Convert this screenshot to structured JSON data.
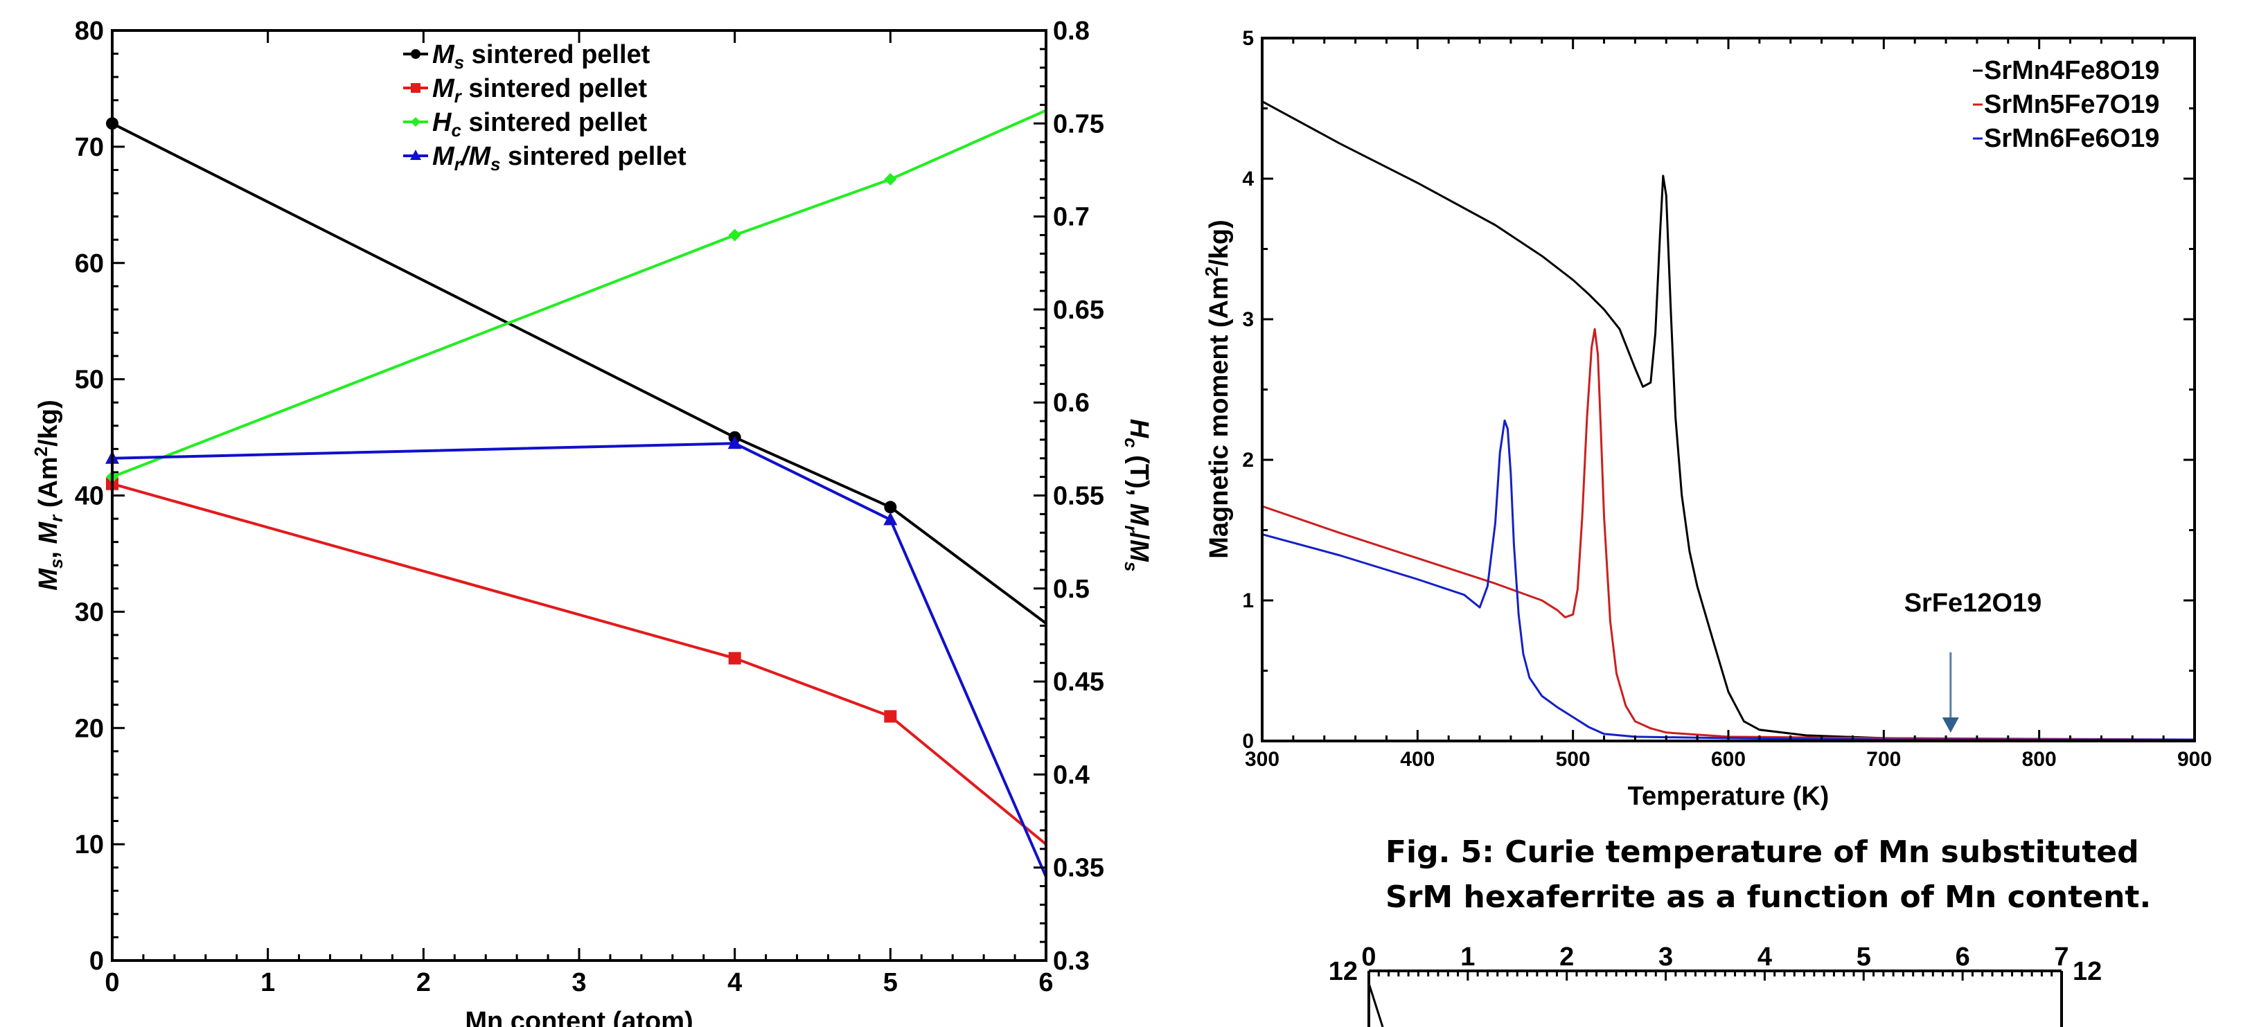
{
  "chart_data": [
    {
      "type": "line",
      "xlabel": "Mn content (atom)",
      "ylabel": "Ms, Mr (Am2/kg)",
      "y2label": "Hc (T), Mr/Ms",
      "xlim": [
        0,
        6
      ],
      "ylim": [
        0,
        80
      ],
      "y2lim": [
        0.3,
        0.8
      ],
      "x_ticks": [
        "0",
        "1",
        "2",
        "3",
        "4",
        "5",
        "6"
      ],
      "y_ticks": [
        "0",
        "10",
        "20",
        "30",
        "40",
        "50",
        "60",
        "70",
        "80"
      ],
      "y2_ticks": [
        "0.3",
        "0.35",
        "0.4",
        "0.45",
        "0.5",
        "0.55",
        "0.6",
        "0.65",
        "0.7",
        "0.75",
        "0.8"
      ],
      "legend_position": "top",
      "series": [
        {
          "name": "Ms sintered pellet",
          "sym": "M",
          "sub": "s",
          "axis": "left",
          "color": "#000000",
          "marker": "circle",
          "x": [
            0,
            4,
            5,
            6
          ],
          "y": [
            72,
            45,
            39,
            29
          ]
        },
        {
          "name": "Mr sintered pellet",
          "sym": "M",
          "sub": "r",
          "axis": "left",
          "color": "#e31a1c",
          "marker": "square",
          "x": [
            0,
            4,
            5,
            6
          ],
          "y": [
            41,
            26,
            21,
            10
          ]
        },
        {
          "name": "Hc sintered pellet",
          "sym": "H",
          "sub": "c",
          "axis": "right",
          "color": "#22ee22",
          "marker": "diamond",
          "x": [
            0,
            4,
            5,
            6
          ],
          "y": [
            0.56,
            0.69,
            0.72,
            0.757
          ]
        },
        {
          "name": "Mr/Ms sintered pellet",
          "sym": "M",
          "sub": "r",
          "sym2": "/M",
          "sub2": "s",
          "axis": "right",
          "color": "#1010cc",
          "marker": "triangle",
          "x": [
            0,
            4,
            5,
            6
          ],
          "y": [
            0.57,
            0.578,
            0.537,
            0.345
          ]
        }
      ]
    },
    {
      "type": "line",
      "xlabel": "Temperature (K)",
      "ylabel": "Magnetic moment (Am2/kg)",
      "xlim": [
        300,
        900
      ],
      "ylim": [
        0,
        5
      ],
      "x_ticks": [
        "300",
        "400",
        "500",
        "600",
        "700",
        "800",
        "900"
      ],
      "y_ticks": [
        "0",
        "1",
        "2",
        "3",
        "4",
        "5"
      ],
      "legend_position": "top-right",
      "annotation": "SrFe12O19",
      "annotation_x": 743,
      "series": [
        {
          "name": "SrMn4Fe8O19",
          "color": "#000000",
          "x": [
            300,
            350,
            400,
            450,
            480,
            500,
            510,
            520,
            530,
            540,
            545,
            550,
            553,
            556,
            558,
            560,
            563,
            566,
            570,
            575,
            580,
            590,
            600,
            610,
            620,
            650,
            700,
            800,
            900
          ],
          "y": [
            4.55,
            4.25,
            3.97,
            3.67,
            3.45,
            3.28,
            3.18,
            3.07,
            2.93,
            2.65,
            2.52,
            2.55,
            2.9,
            3.6,
            4.02,
            3.88,
            3.05,
            2.3,
            1.75,
            1.35,
            1.1,
            0.72,
            0.35,
            0.14,
            0.08,
            0.04,
            0.02,
            0.01,
            0.01
          ]
        },
        {
          "name": "SrMn5Fe7O19",
          "color": "#cc1f1f",
          "x": [
            300,
            350,
            400,
            450,
            480,
            490,
            495,
            500,
            503,
            506,
            509,
            512,
            514,
            516,
            518,
            520,
            524,
            528,
            534,
            540,
            550,
            560,
            600,
            700,
            900
          ],
          "y": [
            1.67,
            1.48,
            1.3,
            1.12,
            1.0,
            0.93,
            0.88,
            0.9,
            1.08,
            1.6,
            2.3,
            2.8,
            2.93,
            2.75,
            2.2,
            1.6,
            0.85,
            0.48,
            0.25,
            0.14,
            0.09,
            0.06,
            0.03,
            0.02,
            0.01
          ]
        },
        {
          "name": "SrMn6Fe6O19",
          "color": "#1520c8",
          "x": [
            300,
            350,
            400,
            430,
            440,
            445,
            450,
            453,
            456,
            458,
            460,
            462,
            465,
            468,
            472,
            480,
            490,
            500,
            510,
            520,
            540,
            600,
            700,
            900
          ],
          "y": [
            1.47,
            1.32,
            1.15,
            1.04,
            0.95,
            1.1,
            1.55,
            2.05,
            2.28,
            2.22,
            1.9,
            1.4,
            0.9,
            0.62,
            0.45,
            0.32,
            0.24,
            0.17,
            0.1,
            0.05,
            0.03,
            0.02,
            0.01,
            0.01
          ]
        }
      ]
    },
    {
      "type": "line",
      "x_ticks": [
        "0",
        "1",
        "2",
        "3",
        "4",
        "5",
        "6",
        "7"
      ],
      "y_top_label": "12"
    }
  ],
  "caption": {
    "line1": "Fig. 5: Curie temperature of Mn substituted",
    "line2": "SrM hexaferrite as a function of Mn content."
  }
}
